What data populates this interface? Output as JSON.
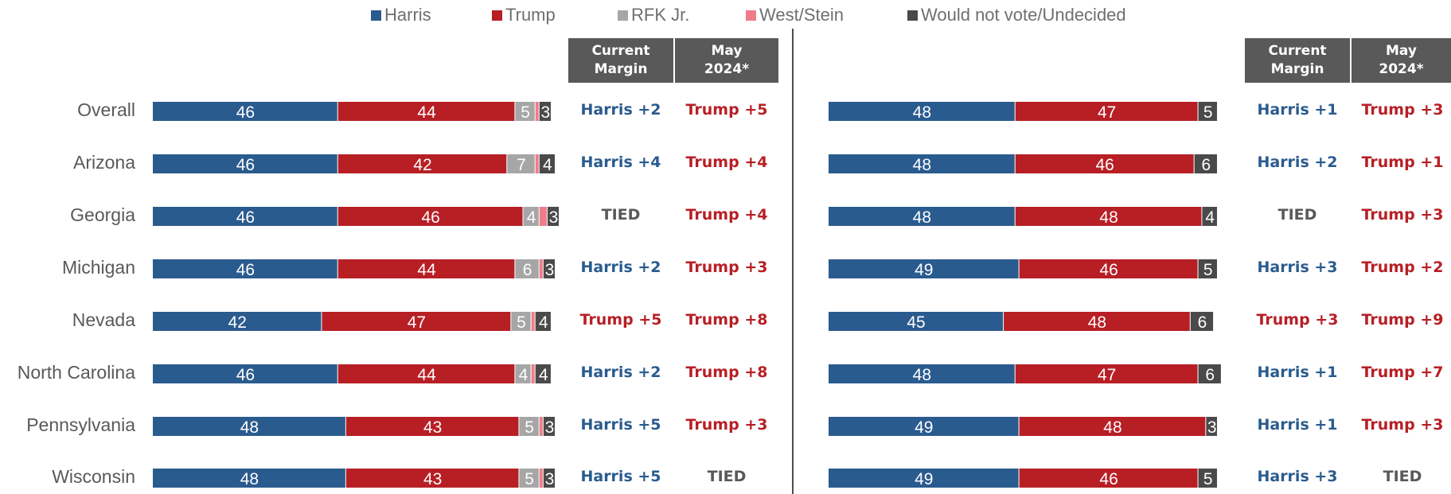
{
  "legend": [
    {
      "label": "Harris",
      "color": "#2a5b8e"
    },
    {
      "label": "Trump",
      "color": "#b71f25"
    },
    {
      "label": "RFK Jr.",
      "color": "#a6a6a6"
    },
    {
      "label": "West/Stein",
      "color": "#f07c8a"
    },
    {
      "label": "Would not vote/Undecided",
      "color": "#4a4a4a"
    }
  ],
  "headers": {
    "current": [
      "Current",
      "Margin"
    ],
    "may": [
      "May",
      "2024*"
    ]
  },
  "categories": [
    "Overall",
    "Arizona",
    "Georgia",
    "Michigan",
    "Nevada",
    "North Carolina",
    "Pennsylvania",
    "Wisconsin"
  ],
  "colors": {
    "harris_text": "#2a5b8e",
    "trump_text": "#b71f25",
    "tied_text": "#595959"
  },
  "chart_data": [
    {
      "type": "bar",
      "stacked": true,
      "orientation": "horizontal",
      "categories": [
        "Overall",
        "Arizona",
        "Georgia",
        "Michigan",
        "Nevada",
        "North Carolina",
        "Pennsylvania",
        "Wisconsin"
      ],
      "series": [
        {
          "name": "Harris",
          "values": [
            46,
            46,
            46,
            46,
            42,
            46,
            48,
            48
          ]
        },
        {
          "name": "Trump",
          "values": [
            44,
            42,
            46,
            44,
            47,
            44,
            43,
            43
          ]
        },
        {
          "name": "RFK Jr.",
          "values": [
            5,
            7,
            4,
            6,
            5,
            4,
            5,
            5
          ]
        },
        {
          "name": "West/Stein",
          "values": [
            1,
            1,
            2,
            1,
            1,
            1,
            1,
            1
          ]
        },
        {
          "name": "Would not vote/Undecided",
          "values": [
            3,
            4,
            3,
            3,
            4,
            4,
            3,
            3
          ]
        }
      ],
      "current_margin": [
        "Harris +2",
        "Harris +4",
        "TIED",
        "Harris +2",
        "Trump +5",
        "Harris +2",
        "Harris +5",
        "Harris +5"
      ],
      "may_2024": [
        "Trump +5",
        "Trump +4",
        "Trump +4",
        "Trump +3",
        "Trump +8",
        "Trump +8",
        "Trump +3",
        "TIED"
      ]
    },
    {
      "type": "bar",
      "stacked": true,
      "orientation": "horizontal",
      "categories": [
        "Overall",
        "Arizona",
        "Georgia",
        "Michigan",
        "Nevada",
        "North Carolina",
        "Pennsylvania",
        "Wisconsin"
      ],
      "series": [
        {
          "name": "Harris",
          "values": [
            48,
            48,
            48,
            49,
            45,
            48,
            49,
            49
          ]
        },
        {
          "name": "Trump",
          "values": [
            47,
            46,
            48,
            46,
            48,
            47,
            48,
            46
          ]
        },
        {
          "name": "Would not vote/Undecided",
          "values": [
            5,
            6,
            4,
            5,
            6,
            6,
            3,
            5
          ]
        }
      ],
      "current_margin": [
        "Harris +1",
        "Harris +2",
        "TIED",
        "Harris +3",
        "Trump +3",
        "Harris +1",
        "Harris +1",
        "Harris +3"
      ],
      "may_2024": [
        "Trump +3",
        "Trump +1",
        "Trump +3",
        "Trump +2",
        "Trump +9",
        "Trump +7",
        "Trump +3",
        "TIED"
      ]
    }
  ]
}
